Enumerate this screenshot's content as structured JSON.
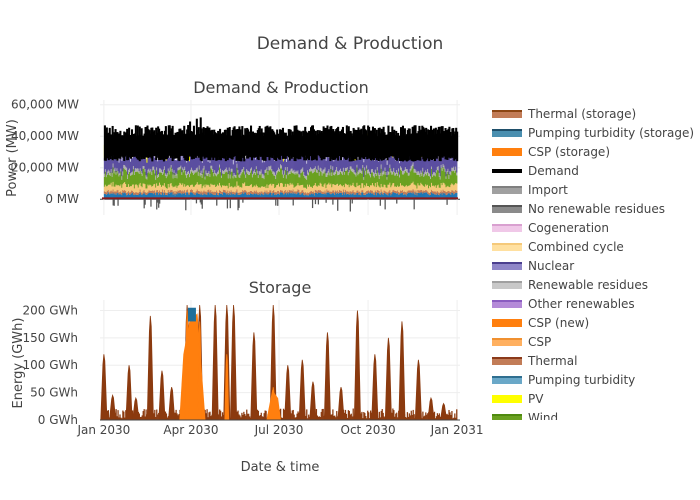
{
  "figure_title": "Demand & Production",
  "shared_xlabel": "Date & time",
  "chart_data": [
    {
      "type": "area",
      "title": "Demand & Production",
      "xlabel": "",
      "ylabel": "Power (MW)",
      "ylim": [
        -10000,
        63000
      ],
      "xlim": [
        "2029-12-28",
        "2031-01-04"
      ],
      "yticks": [
        0,
        20000,
        40000,
        60000
      ],
      "ytick_labels": [
        "0 MW",
        "20,000 MW",
        "40,000 MW",
        "60,000 MW"
      ],
      "grid": true,
      "approx_series_levels": [
        {
          "name": "Demand",
          "color": "#000000",
          "typical_range": [
            24000,
            46000
          ],
          "peak": 52000
        },
        {
          "name": "Nuclear",
          "color": "#5b4ea0",
          "typical_top": 24000
        },
        {
          "name": "Wind",
          "color": "#6aa121",
          "typical_top": 16000
        },
        {
          "name": "Combined cycle",
          "color": "#f5c97a",
          "typical_top": 12000
        },
        {
          "name": "Pumping turbidity",
          "color": "#1f77b4",
          "typical_top": 5000
        },
        {
          "name": "Thermal",
          "color": "#8b3a1a",
          "typical_top": 1000
        },
        {
          "name": "PV",
          "color": "#ffff00",
          "typical_top": 14000
        },
        {
          "name": "Import",
          "color": "#7f7f7f",
          "negative_dips_to": -8000
        }
      ]
    },
    {
      "type": "area",
      "title": "Storage",
      "xlabel": "Date & time",
      "ylabel": "Energy (GWh)",
      "ylim": [
        0,
        210
      ],
      "xlim": [
        "2029-12-28",
        "2031-01-04"
      ],
      "xticks": [
        "Jan 2030",
        "Apr 2030",
        "Jul 2030",
        "Oct 2030",
        "Jan 2031"
      ],
      "yticks": [
        0,
        50,
        100,
        150,
        200
      ],
      "ytick_labels": [
        "0 GWh",
        "50 GWh",
        "100 GWh",
        "150 GWh",
        "200 GWh"
      ],
      "grid": true,
      "series": [
        {
          "name": "Thermal (storage)",
          "color": "#8b3a0f",
          "peaks": [
            {
              "date": "2030-01-01",
              "value": 120
            },
            {
              "date": "2030-01-10",
              "value": 45
            },
            {
              "date": "2030-01-27",
              "value": 100
            },
            {
              "date": "2030-02-03",
              "value": 40
            },
            {
              "date": "2030-02-18",
              "value": 190
            },
            {
              "date": "2030-03-02",
              "value": 90
            },
            {
              "date": "2030-03-12",
              "value": 60
            },
            {
              "date": "2030-03-28",
              "value": 210
            },
            {
              "date": "2030-04-10",
              "value": 210
            },
            {
              "date": "2030-04-26",
              "value": 210
            },
            {
              "date": "2030-05-08",
              "value": 210
            },
            {
              "date": "2030-05-15",
              "value": 210
            },
            {
              "date": "2030-06-05",
              "value": 160
            },
            {
              "date": "2030-06-25",
              "value": 210
            },
            {
              "date": "2030-07-10",
              "value": 100
            },
            {
              "date": "2030-07-25",
              "value": 110
            },
            {
              "date": "2030-08-05",
              "value": 70
            },
            {
              "date": "2030-08-20",
              "value": 160
            },
            {
              "date": "2030-09-03",
              "value": 60
            },
            {
              "date": "2030-09-20",
              "value": 200
            },
            {
              "date": "2030-10-08",
              "value": 120
            },
            {
              "date": "2030-10-22",
              "value": 150
            },
            {
              "date": "2030-11-05",
              "value": 180
            },
            {
              "date": "2030-11-22",
              "value": 110
            },
            {
              "date": "2030-12-05",
              "value": 40
            },
            {
              "date": "2030-12-18",
              "value": 30
            }
          ]
        },
        {
          "name": "CSP (storage)",
          "color": "#ff7f0e",
          "peaks": [
            {
              "date": "2030-03-28",
              "value": 200
            },
            {
              "date": "2030-04-10",
              "value": 180
            },
            {
              "date": "2030-05-08",
              "value": 120
            },
            {
              "date": "2030-06-25",
              "value": 60
            }
          ]
        },
        {
          "name": "Pumping turbidity (storage)",
          "color": "#1f6f9a",
          "peaks": [
            {
              "date": "2030-04-02",
              "value": 200
            }
          ]
        }
      ]
    }
  ],
  "legend": [
    {
      "label": "Thermal (storage)",
      "color": "#c27c57",
      "edge": "#8b4513"
    },
    {
      "label": "Pumping turbidity (storage)",
      "color": "#4a8fb0",
      "edge": "#1f4f6a"
    },
    {
      "label": "CSP (storage)",
      "color": "#ff7f0e",
      "edge": "#ff7f0e"
    },
    {
      "label": "Demand",
      "color": "#000000",
      "edge": "#000000"
    },
    {
      "label": "Import",
      "color": "#a0a0a0",
      "edge": "#7f7f7f"
    },
    {
      "label": "No renewable residues",
      "color": "#8a8a8a",
      "edge": "#555555"
    },
    {
      "label": "Cogeneration",
      "color": "#f0c8e8",
      "edge": "#d9a0d0"
    },
    {
      "label": "Combined cycle",
      "color": "#ffe0a0",
      "edge": "#f5c97a"
    },
    {
      "label": "Nuclear",
      "color": "#8f86c8",
      "edge": "#4b3f8f"
    },
    {
      "label": "Renewable residues",
      "color": "#c8c8c8",
      "edge": "#a0a0a0"
    },
    {
      "label": "Other renewables",
      "color": "#b48ad8",
      "edge": "#8a5cc0"
    },
    {
      "label": "CSP (new)",
      "color": "#ff7f0e",
      "edge": "#ff7f0e"
    },
    {
      "label": "CSP",
      "color": "#ffb060",
      "edge": "#f09030"
    },
    {
      "label": "Thermal",
      "color": "#c27c57",
      "edge": "#8b3a1a"
    },
    {
      "label": "Pumping turbidity",
      "color": "#6aa8c8",
      "edge": "#2f6f90"
    },
    {
      "label": "PV",
      "color": "#ffff00",
      "edge": "#ffff00"
    },
    {
      "label": "Wind",
      "color": "#6aa121",
      "edge": "#4f8a10"
    }
  ]
}
